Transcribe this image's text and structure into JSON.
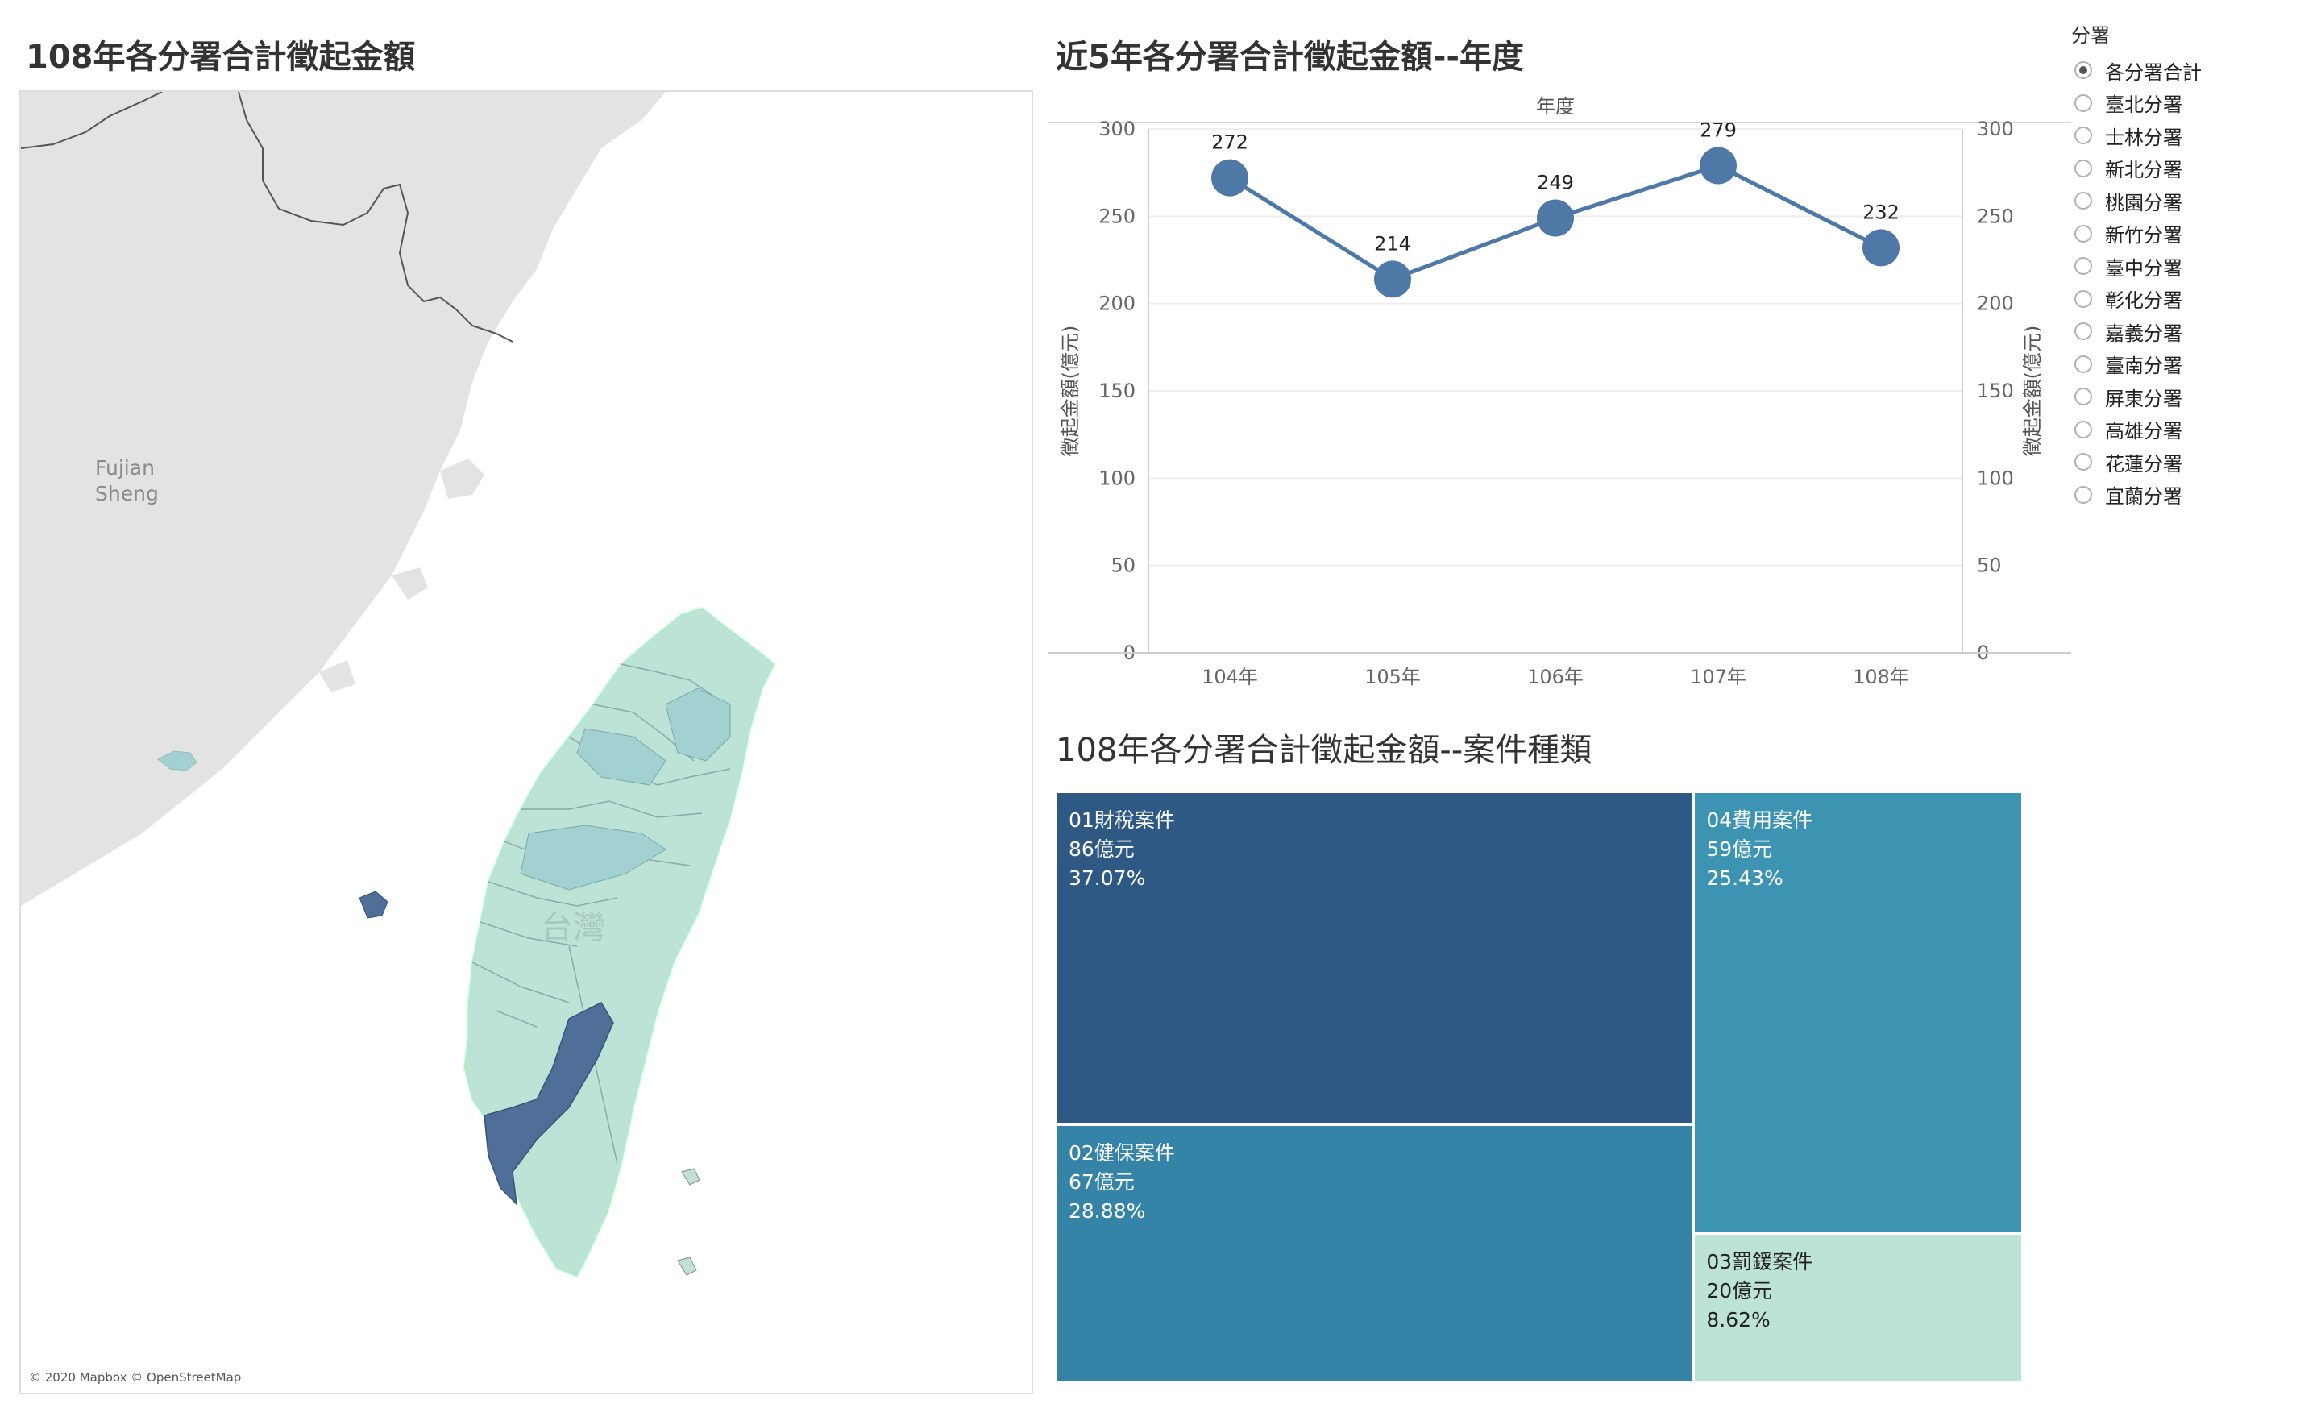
{
  "map_panel": {
    "title": "108年各分署合計徵起金額",
    "label_fujian": "Fujian",
    "label_sheng": "Sheng",
    "label_taiwan": "台灣",
    "attribution": "© 2020 Mapbox © OpenStreetMap"
  },
  "line_panel": {
    "title": "近5年各分署合計徵起金額--年度"
  },
  "treemap_panel": {
    "title": "108年各分署合計徵起金額--案件種類"
  },
  "filter": {
    "title": "分署",
    "options": [
      {
        "label": "各分署合計",
        "selected": true
      },
      {
        "label": "臺北分署",
        "selected": false
      },
      {
        "label": "士林分署",
        "selected": false
      },
      {
        "label": "新北分署",
        "selected": false
      },
      {
        "label": "桃園分署",
        "selected": false
      },
      {
        "label": "新竹分署",
        "selected": false
      },
      {
        "label": "臺中分署",
        "selected": false
      },
      {
        "label": "彰化分署",
        "selected": false
      },
      {
        "label": "嘉義分署",
        "selected": false
      },
      {
        "label": "臺南分署",
        "selected": false
      },
      {
        "label": "屏東分署",
        "selected": false
      },
      {
        "label": "高雄分署",
        "selected": false
      },
      {
        "label": "花蓮分署",
        "selected": false
      },
      {
        "label": "宜蘭分署",
        "selected": false
      }
    ]
  },
  "chart_data": [
    {
      "type": "line",
      "title": "近5年各分署合計徵起金額--年度",
      "xlabel": "年度",
      "ylabel": "徵起金額(億元)",
      "y2label": "徵起金額(億元)",
      "categories": [
        "104年",
        "105年",
        "106年",
        "107年",
        "108年"
      ],
      "series": [
        {
          "values": [
            272,
            214,
            249,
            279,
            232
          ]
        }
      ],
      "data_labels": [
        "272",
        "214",
        "249",
        "279",
        "232"
      ],
      "ylim": [
        0,
        300
      ],
      "yticks": [
        "0",
        "50",
        "100",
        "150",
        "200",
        "250",
        "300"
      ],
      "grid": true,
      "color": "#4e79a7"
    },
    {
      "type": "treemap",
      "title": "108年各分署合計徵起金額--案件種類",
      "items": [
        {
          "name": "01財稅案件",
          "value": 86,
          "value_label": "86億元",
          "share": "37.07%",
          "color": "#2e5984"
        },
        {
          "name": "02健保案件",
          "value": 67,
          "value_label": "67億元",
          "share": "28.88%",
          "color": "#3584a8"
        },
        {
          "name": "04費用案件",
          "value": 59,
          "value_label": "59億元",
          "share": "25.43%",
          "color": "#3c93b2"
        },
        {
          "name": "03罰鍰案件",
          "value": 20,
          "value_label": "20億元",
          "share": "8.62%",
          "color": "#bde3d7"
        }
      ]
    }
  ],
  "colors": {
    "map_land": "#e3e3e3",
    "map_sea": "#ffffff",
    "map_low": "#bde3d7",
    "map_mid": "#a3d1d1",
    "map_high": "#4f6f99"
  }
}
